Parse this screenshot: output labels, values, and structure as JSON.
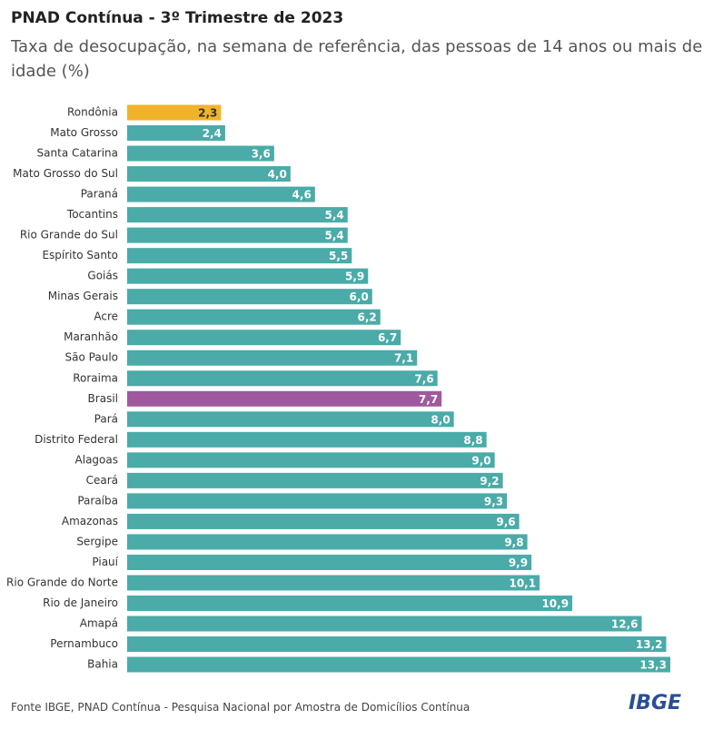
{
  "chart_data": {
    "type": "bar",
    "orientation": "horizontal",
    "title": "PNAD Contínua - 3º Trimestre de 2023",
    "subtitle": "Taxa de desocupação, na semana de referência, das pessoas de 14 anos ou mais de idade (%)",
    "categories": [
      "Rondônia",
      "Mato Grosso",
      "Santa Catarina",
      "Mato Grosso do Sul",
      "Paraná",
      "Tocantins",
      "Rio Grande do Sul",
      "Espírito Santo",
      "Goiás",
      "Minas Gerais",
      "Acre",
      "Maranhão",
      "São Paulo",
      "Roraima",
      "Brasil",
      "Pará",
      "Distrito Federal",
      "Alagoas",
      "Ceará",
      "Paraíba",
      "Amazonas",
      "Sergipe",
      "Piauí",
      "Rio Grande do Norte",
      "Rio de Janeiro",
      "Amapá",
      "Pernambuco",
      "Bahia"
    ],
    "values": [
      2.3,
      2.4,
      3.6,
      4.0,
      4.6,
      5.4,
      5.4,
      5.5,
      5.9,
      6.0,
      6.2,
      6.7,
      7.1,
      7.6,
      7.7,
      8.0,
      8.8,
      9.0,
      9.2,
      9.3,
      9.6,
      9.8,
      9.9,
      10.1,
      10.9,
      12.6,
      13.2,
      13.3
    ],
    "value_labels": [
      "2,3",
      "2,4",
      "3,6",
      "4,0",
      "4,6",
      "5,4",
      "5,4",
      "5,5",
      "5,9",
      "6,0",
      "6,2",
      "6,7",
      "7,1",
      "7,6",
      "7,7",
      "8,0",
      "8,8",
      "9,0",
      "9,2",
      "9,3",
      "9,6",
      "9,8",
      "9,9",
      "10,1",
      "10,9",
      "12,6",
      "13,2",
      "13,3"
    ],
    "colors": [
      "#f0b32a",
      "#4aaba8",
      "#4aaba8",
      "#4aaba8",
      "#4aaba8",
      "#4aaba8",
      "#4aaba8",
      "#4aaba8",
      "#4aaba8",
      "#4aaba8",
      "#4aaba8",
      "#4aaba8",
      "#4aaba8",
      "#4aaba8",
      "#a0599e",
      "#4aaba8",
      "#4aaba8",
      "#4aaba8",
      "#4aaba8",
      "#4aaba8",
      "#4aaba8",
      "#4aaba8",
      "#4aaba8",
      "#4aaba8",
      "#4aaba8",
      "#4aaba8",
      "#4aaba8",
      "#4aaba8"
    ]
  },
  "footer": {
    "source": "Fonte IBGE, PNAD Contínua - Pesquisa Nacional por Amostra de Domicílios Contínua",
    "logo": "IBGE"
  }
}
